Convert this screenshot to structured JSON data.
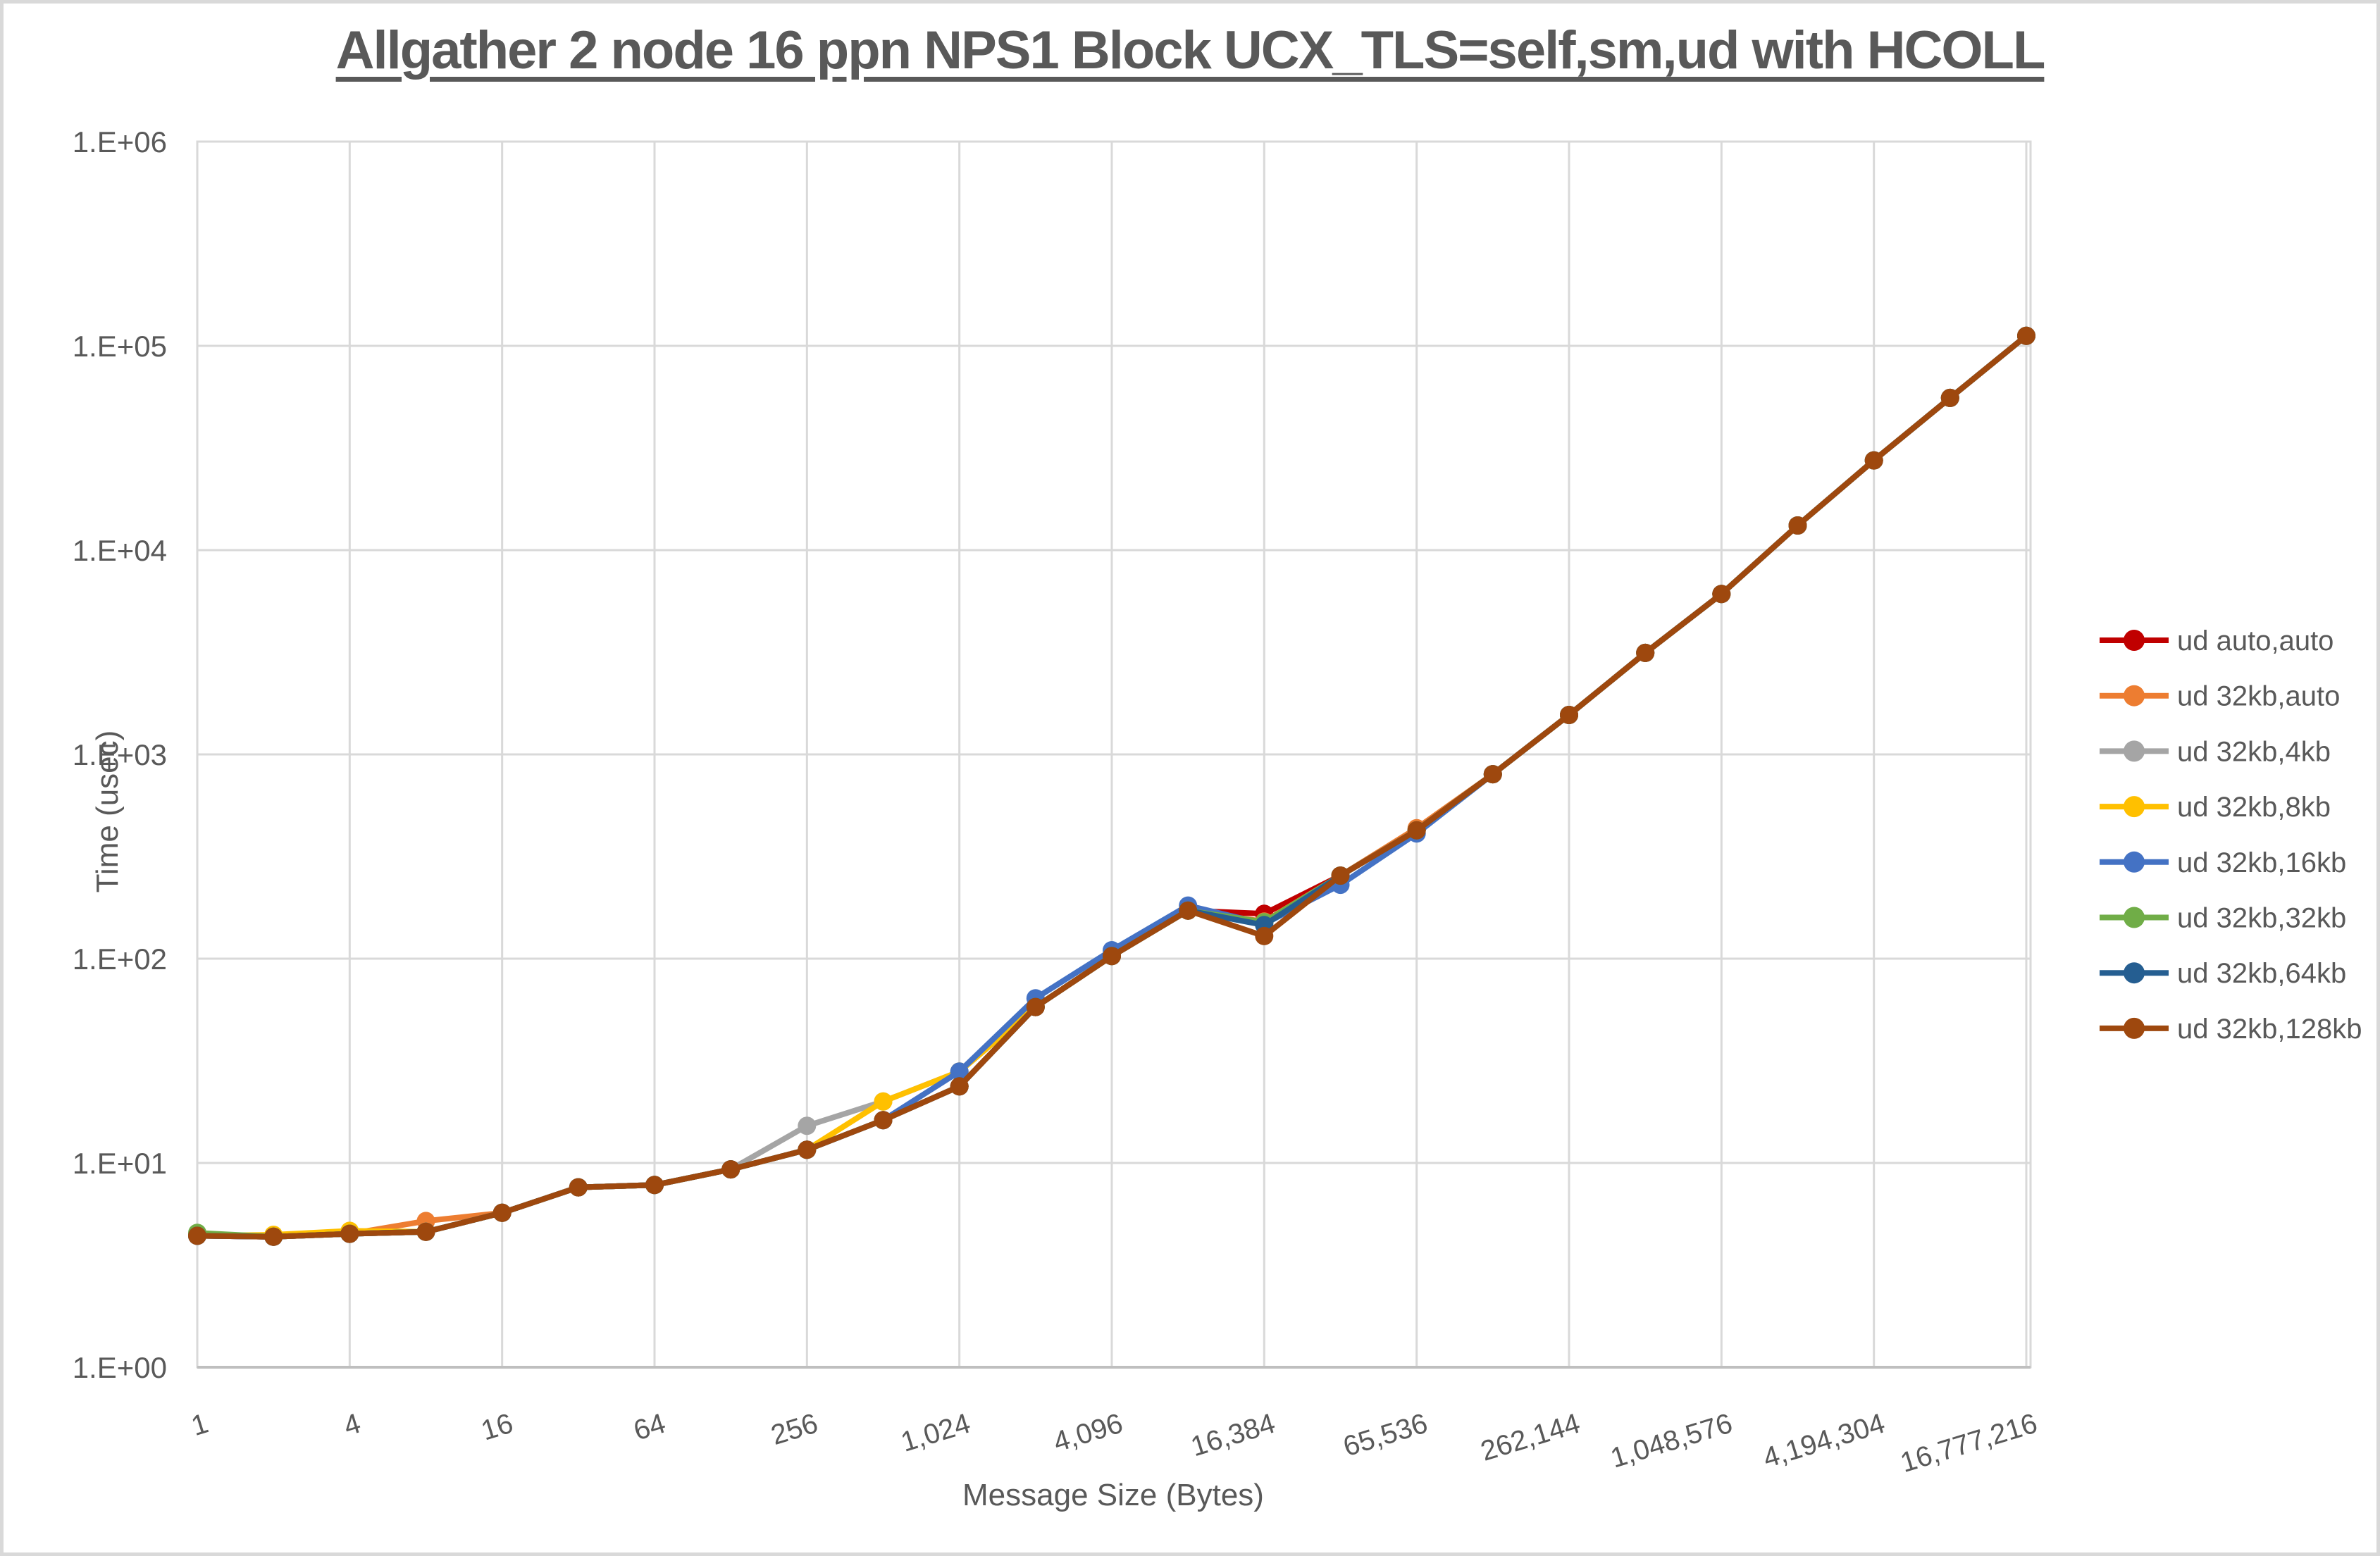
{
  "page": {
    "window_title": "Allgather benchmark chart"
  },
  "style": {
    "title_color": "#595959",
    "tick_label_color": "#595959",
    "gridline_color": "#d9d9d9",
    "axis_line_color": "#bfbfbf",
    "background": "#ffffff"
  },
  "chart_data": {
    "type": "line",
    "title": "Allgather 2 node 16 ppn NPS1 Block UCX_TLS=self,sm,ud with HCOLL",
    "xlabel": "Message Size (Bytes)",
    "ylabel": "Time (usec)",
    "x_scale": "log2",
    "y_scale": "log10",
    "ylim": [
      1,
      1000000
    ],
    "grid": true,
    "legend_position": "right",
    "marker": "circle",
    "y_tick_labels": [
      "1.E+00",
      "1.E+01",
      "1.E+02",
      "1.E+03",
      "1.E+04",
      "1.E+05",
      "1.E+06"
    ],
    "x_tick_values": [
      1,
      4,
      16,
      64,
      256,
      1024,
      4096,
      16384,
      65536,
      262144,
      1048576,
      4194304,
      16777216
    ],
    "x_tick_labels": [
      "1",
      "4",
      "16",
      "64",
      "256",
      "1,024",
      "4,096",
      "16,384",
      "65,536",
      "262,144",
      "1,048,576",
      "4,194,304",
      "16,777,216"
    ],
    "x": [
      1,
      2,
      4,
      8,
      16,
      32,
      64,
      128,
      256,
      512,
      1024,
      2048,
      4096,
      8192,
      16384,
      32768,
      65536,
      131072,
      262144,
      524288,
      1048576,
      2097152,
      4194304,
      8388608,
      16777216
    ],
    "series": [
      {
        "name": "ud auto,auto",
        "color": "#c00000",
        "values": [
          4.4,
          4.35,
          4.5,
          4.6,
          5.7,
          7.6,
          7.8,
          9.3,
          11.6,
          16.2,
          23.7,
          58,
          103,
          172,
          166,
          255,
          425,
          800,
          1560,
          3140,
          6100,
          13200,
          27500,
          55600,
          112000
        ]
      },
      {
        "name": "ud 32kb,auto",
        "color": "#ed7d31",
        "values": [
          4.4,
          4.35,
          4.5,
          5.2,
          5.7,
          7.6,
          7.8,
          9.3,
          11.6,
          16.2,
          23.7,
          58,
          103,
          172,
          152,
          255,
          435,
          800,
          1560,
          3140,
          6100,
          13200,
          27500,
          55600,
          112000
        ]
      },
      {
        "name": "ud 32kb,4kb",
        "color": "#a5a5a5",
        "values": [
          4.4,
          4.35,
          4.5,
          4.6,
          5.7,
          7.6,
          7.8,
          9.3,
          15.2,
          20,
          28,
          58,
          103,
          172,
          150,
          255,
          425,
          800,
          1560,
          3140,
          6100,
          13200,
          27500,
          55600,
          112000
        ]
      },
      {
        "name": "ud 32kb,8kb",
        "color": "#ffc000",
        "values": [
          4.4,
          4.45,
          4.65,
          4.6,
          5.7,
          7.6,
          7.8,
          9.3,
          11.6,
          20,
          28,
          58,
          103,
          172,
          150,
          255,
          425,
          800,
          1560,
          3140,
          6100,
          13200,
          27500,
          55600,
          112000
        ]
      },
      {
        "name": "ud 32kb,16kb",
        "color": "#4472c4",
        "values": [
          4.4,
          4.35,
          4.5,
          4.6,
          5.7,
          7.6,
          7.8,
          9.3,
          11.6,
          16.2,
          28,
          64,
          110,
          182,
          148,
          230,
          410,
          800,
          1560,
          3140,
          6100,
          13200,
          27500,
          55600,
          112000
        ]
      },
      {
        "name": "ud 32kb,32kb",
        "color": "#70ad47",
        "values": [
          4.55,
          4.35,
          4.5,
          4.6,
          5.7,
          7.6,
          7.8,
          9.3,
          11.6,
          16.2,
          23.7,
          58,
          103,
          172,
          151,
          255,
          425,
          800,
          1560,
          3140,
          6100,
          13200,
          27500,
          55600,
          112000
        ]
      },
      {
        "name": "ud 32kb,64kb",
        "color": "#255e91",
        "values": [
          4.4,
          4.35,
          4.5,
          4.6,
          5.7,
          7.6,
          7.8,
          9.3,
          11.6,
          16.2,
          23.7,
          58,
          103,
          172,
          146,
          255,
          425,
          800,
          1560,
          3140,
          6100,
          13200,
          27500,
          55600,
          112000
        ]
      },
      {
        "name": "ud 32kb,128kb",
        "color": "#9e480e",
        "values": [
          4.4,
          4.35,
          4.5,
          4.6,
          5.7,
          7.6,
          7.8,
          9.3,
          11.6,
          16.2,
          23.7,
          58,
          103,
          172,
          129,
          255,
          425,
          800,
          1560,
          3140,
          6100,
          13200,
          27500,
          55600,
          112000
        ]
      }
    ]
  }
}
